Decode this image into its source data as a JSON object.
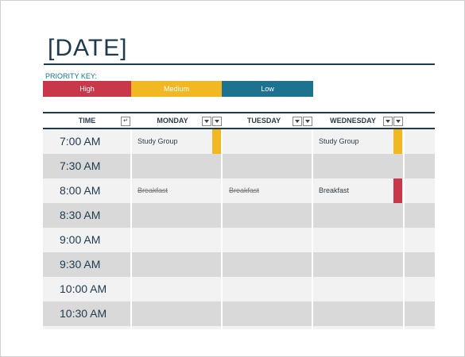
{
  "title": "[DATE]",
  "priority_key": {
    "label": "PRIORITY KEY:",
    "high": "High",
    "medium": "Medium",
    "low": "Low",
    "colors": {
      "high": "#c8374a",
      "medium": "#f2b824",
      "low": "#1d7290"
    }
  },
  "columns": {
    "time": "TIME",
    "monday": "MONDAY",
    "tuesday": "TUESDAY",
    "wednesday": "WEDNESDAY"
  },
  "times": [
    "7:00 AM",
    "7:30 AM",
    "8:00 AM",
    "8:30 AM",
    "9:00 AM",
    "9:30 AM",
    "10:00 AM",
    "10:30 AM"
  ],
  "entries": {
    "mon_700": "Study Group",
    "wed_700": "Study Group",
    "mon_800": "Breakfast",
    "tue_800": "Breakfast",
    "wed_800": "Breakfast"
  },
  "icons": {
    "filter": "filter-dropdown-icon",
    "sort": "return-arrow-icon"
  }
}
